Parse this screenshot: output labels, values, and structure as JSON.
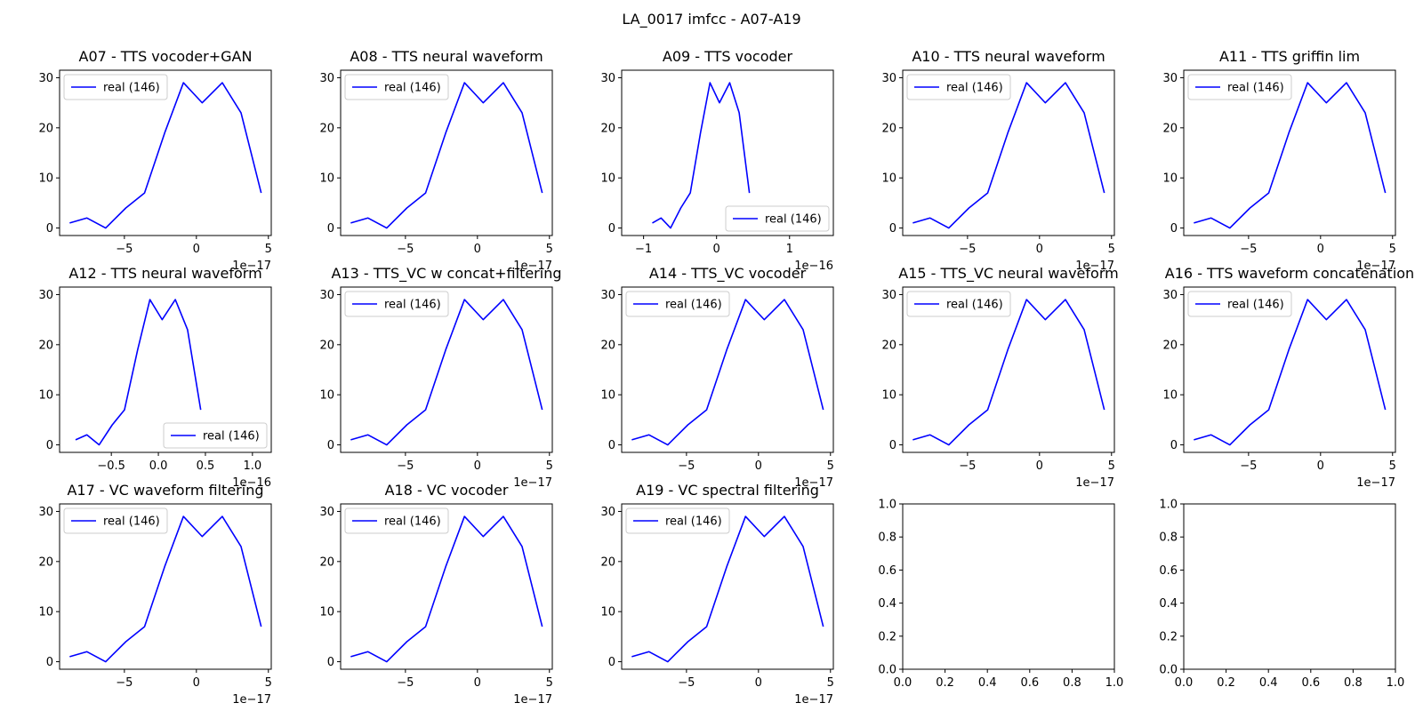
{
  "figure": {
    "suptitle": "LA_0017 imfcc - A07-A19"
  },
  "legend_label": "real (146)",
  "colors": {
    "series": "#0000ff",
    "axes": "#000000",
    "legend_border": "#cccccc"
  },
  "chart_data": [
    {
      "type": "line",
      "title": "A07 - TTS vocoder+GAN",
      "x": [
        -8.8e-17,
        -7.6e-17,
        -6.3e-17,
        -4.9e-17,
        -3.6e-17,
        -2.2e-17,
        -9e-18,
        4e-18,
        1.8e-17,
        3.1e-17,
        4.5e-17
      ],
      "series": [
        {
          "name": "real (146)",
          "values": [
            1,
            2,
            0,
            4,
            7,
            19,
            29,
            25,
            29,
            23,
            7
          ]
        }
      ],
      "xlim": [
        -9.5e-17,
        5.2e-17
      ],
      "ylim": [
        -1.5,
        31.5
      ],
      "xticks": [
        -5e-17,
        0,
        5e-17
      ],
      "xticklabels": [
        "−5",
        "0",
        "5"
      ],
      "yticks": [
        0,
        10,
        20,
        30
      ],
      "yticklabels": [
        "0",
        "10",
        "20",
        "30"
      ],
      "offset_text": "1e−17",
      "legend_loc": "upper left"
    },
    {
      "type": "line",
      "title": "A08 - TTS neural waveform",
      "x": [
        -8.8e-17,
        -7.6e-17,
        -6.3e-17,
        -4.9e-17,
        -3.6e-17,
        -2.2e-17,
        -9e-18,
        4e-18,
        1.8e-17,
        3.1e-17,
        4.5e-17
      ],
      "series": [
        {
          "name": "real (146)",
          "values": [
            1,
            2,
            0,
            4,
            7,
            19,
            29,
            25,
            29,
            23,
            7
          ]
        }
      ],
      "xlim": [
        -9.5e-17,
        5.2e-17
      ],
      "ylim": [
        -1.5,
        31.5
      ],
      "xticks": [
        -5e-17,
        0,
        5e-17
      ],
      "xticklabels": [
        "−5",
        "0",
        "5"
      ],
      "yticks": [
        0,
        10,
        20,
        30
      ],
      "yticklabels": [
        "0",
        "10",
        "20",
        "30"
      ],
      "offset_text": "1e−17",
      "legend_loc": "upper left"
    },
    {
      "type": "line",
      "title": "A09 - TTS vocoder",
      "x": [
        -8.8e-17,
        -7.6e-17,
        -6.3e-17,
        -4.9e-17,
        -3.6e-17,
        -2.2e-17,
        -9e-18,
        4e-18,
        1.8e-17,
        3.1e-17,
        4.5e-17
      ],
      "series": [
        {
          "name": "real (146)",
          "values": [
            1,
            2,
            0,
            4,
            7,
            19,
            29,
            25,
            29,
            23,
            7
          ]
        }
      ],
      "xlim": [
        -1.3e-16,
        1.6e-16
      ],
      "ylim": [
        -1.5,
        31.5
      ],
      "xticks": [
        -1e-16,
        0,
        1e-16
      ],
      "xticklabels": [
        "−1",
        "0",
        "1"
      ],
      "yticks": [
        0,
        10,
        20,
        30
      ],
      "yticklabels": [
        "0",
        "10",
        "20",
        "30"
      ],
      "offset_text": "1e−16",
      "legend_loc": "lower right"
    },
    {
      "type": "line",
      "title": "A10 - TTS neural waveform",
      "x": [
        -8.8e-17,
        -7.6e-17,
        -6.3e-17,
        -4.9e-17,
        -3.6e-17,
        -2.2e-17,
        -9e-18,
        4e-18,
        1.8e-17,
        3.1e-17,
        4.5e-17
      ],
      "series": [
        {
          "name": "real (146)",
          "values": [
            1,
            2,
            0,
            4,
            7,
            19,
            29,
            25,
            29,
            23,
            7
          ]
        }
      ],
      "xlim": [
        -9.5e-17,
        5.2e-17
      ],
      "ylim": [
        -1.5,
        31.5
      ],
      "xticks": [
        -5e-17,
        0,
        5e-17
      ],
      "xticklabels": [
        "−5",
        "0",
        "5"
      ],
      "yticks": [
        0,
        10,
        20,
        30
      ],
      "yticklabels": [
        "0",
        "10",
        "20",
        "30"
      ],
      "offset_text": "1e−17",
      "legend_loc": "upper left"
    },
    {
      "type": "line",
      "title": "A11 - TTS griffin lim",
      "x": [
        -8.8e-17,
        -7.6e-17,
        -6.3e-17,
        -4.9e-17,
        -3.6e-17,
        -2.2e-17,
        -9e-18,
        4e-18,
        1.8e-17,
        3.1e-17,
        4.5e-17
      ],
      "series": [
        {
          "name": "real (146)",
          "values": [
            1,
            2,
            0,
            4,
            7,
            19,
            29,
            25,
            29,
            23,
            7
          ]
        }
      ],
      "xlim": [
        -9.5e-17,
        5.2e-17
      ],
      "ylim": [
        -1.5,
        31.5
      ],
      "xticks": [
        -5e-17,
        0,
        5e-17
      ],
      "xticklabels": [
        "−5",
        "0",
        "5"
      ],
      "yticks": [
        0,
        10,
        20,
        30
      ],
      "yticklabels": [
        "0",
        "10",
        "20",
        "30"
      ],
      "offset_text": "1e−17",
      "legend_loc": "upper left"
    },
    {
      "type": "line",
      "title": "A12 - TTS neural waveform",
      "x": [
        -8.8e-17,
        -7.6e-17,
        -6.3e-17,
        -4.9e-17,
        -3.6e-17,
        -2.2e-17,
        -9e-18,
        4e-18,
        1.8e-17,
        3.1e-17,
        4.5e-17
      ],
      "series": [
        {
          "name": "real (146)",
          "values": [
            1,
            2,
            0,
            4,
            7,
            19,
            29,
            25,
            29,
            23,
            7
          ]
        }
      ],
      "xlim": [
        -1.05e-16,
        1.2e-16
      ],
      "ylim": [
        -1.5,
        31.5
      ],
      "xticks": [
        -5e-17,
        0,
        5e-17,
        1e-16
      ],
      "xticklabels": [
        "−0.5",
        "0.0",
        "0.5",
        "1.0"
      ],
      "yticks": [
        0,
        10,
        20,
        30
      ],
      "yticklabels": [
        "0",
        "10",
        "20",
        "30"
      ],
      "offset_text": "1e−16",
      "legend_loc": "lower right"
    },
    {
      "type": "line",
      "title": "A13 - TTS_VC w concat+filtering",
      "x": [
        -8.8e-17,
        -7.6e-17,
        -6.3e-17,
        -4.9e-17,
        -3.6e-17,
        -2.2e-17,
        -9e-18,
        4e-18,
        1.8e-17,
        3.1e-17,
        4.5e-17
      ],
      "series": [
        {
          "name": "real (146)",
          "values": [
            1,
            2,
            0,
            4,
            7,
            19,
            29,
            25,
            29,
            23,
            7
          ]
        }
      ],
      "xlim": [
        -9.5e-17,
        5.2e-17
      ],
      "ylim": [
        -1.5,
        31.5
      ],
      "xticks": [
        -5e-17,
        0,
        5e-17
      ],
      "xticklabels": [
        "−5",
        "0",
        "5"
      ],
      "yticks": [
        0,
        10,
        20,
        30
      ],
      "yticklabels": [
        "0",
        "10",
        "20",
        "30"
      ],
      "offset_text": "1e−17",
      "legend_loc": "upper left"
    },
    {
      "type": "line",
      "title": "A14 - TTS_VC vocoder",
      "x": [
        -8.8e-17,
        -7.6e-17,
        -6.3e-17,
        -4.9e-17,
        -3.6e-17,
        -2.2e-17,
        -9e-18,
        4e-18,
        1.8e-17,
        3.1e-17,
        4.5e-17
      ],
      "series": [
        {
          "name": "real (146)",
          "values": [
            1,
            2,
            0,
            4,
            7,
            19,
            29,
            25,
            29,
            23,
            7
          ]
        }
      ],
      "xlim": [
        -9.5e-17,
        5.2e-17
      ],
      "ylim": [
        -1.5,
        31.5
      ],
      "xticks": [
        -5e-17,
        0,
        5e-17
      ],
      "xticklabels": [
        "−5",
        "0",
        "5"
      ],
      "yticks": [
        0,
        10,
        20,
        30
      ],
      "yticklabels": [
        "0",
        "10",
        "20",
        "30"
      ],
      "offset_text": "1e−17",
      "legend_loc": "upper left"
    },
    {
      "type": "line",
      "title": "A15 - TTS_VC neural waveform",
      "x": [
        -8.8e-17,
        -7.6e-17,
        -6.3e-17,
        -4.9e-17,
        -3.6e-17,
        -2.2e-17,
        -9e-18,
        4e-18,
        1.8e-17,
        3.1e-17,
        4.5e-17
      ],
      "series": [
        {
          "name": "real (146)",
          "values": [
            1,
            2,
            0,
            4,
            7,
            19,
            29,
            25,
            29,
            23,
            7
          ]
        }
      ],
      "xlim": [
        -9.5e-17,
        5.2e-17
      ],
      "ylim": [
        -1.5,
        31.5
      ],
      "xticks": [
        -5e-17,
        0,
        5e-17
      ],
      "xticklabels": [
        "−5",
        "0",
        "5"
      ],
      "yticks": [
        0,
        10,
        20,
        30
      ],
      "yticklabels": [
        "0",
        "10",
        "20",
        "30"
      ],
      "offset_text": "1e−17",
      "legend_loc": "upper left"
    },
    {
      "type": "line",
      "title": "A16 - TTS waveform concatenation",
      "x": [
        -8.8e-17,
        -7.6e-17,
        -6.3e-17,
        -4.9e-17,
        -3.6e-17,
        -2.2e-17,
        -9e-18,
        4e-18,
        1.8e-17,
        3.1e-17,
        4.5e-17
      ],
      "series": [
        {
          "name": "real (146)",
          "values": [
            1,
            2,
            0,
            4,
            7,
            19,
            29,
            25,
            29,
            23,
            7
          ]
        }
      ],
      "xlim": [
        -9.5e-17,
        5.2e-17
      ],
      "ylim": [
        -1.5,
        31.5
      ],
      "xticks": [
        -5e-17,
        0,
        5e-17
      ],
      "xticklabels": [
        "−5",
        "0",
        "5"
      ],
      "yticks": [
        0,
        10,
        20,
        30
      ],
      "yticklabels": [
        "0",
        "10",
        "20",
        "30"
      ],
      "offset_text": "1e−17",
      "legend_loc": "upper left"
    },
    {
      "type": "line",
      "title": "A17 - VC waveform filtering",
      "x": [
        -8.8e-17,
        -7.6e-17,
        -6.3e-17,
        -4.9e-17,
        -3.6e-17,
        -2.2e-17,
        -9e-18,
        4e-18,
        1.8e-17,
        3.1e-17,
        4.5e-17
      ],
      "series": [
        {
          "name": "real (146)",
          "values": [
            1,
            2,
            0,
            4,
            7,
            19,
            29,
            25,
            29,
            23,
            7
          ]
        }
      ],
      "xlim": [
        -9.5e-17,
        5.2e-17
      ],
      "ylim": [
        -1.5,
        31.5
      ],
      "xticks": [
        -5e-17,
        0,
        5e-17
      ],
      "xticklabels": [
        "−5",
        "0",
        "5"
      ],
      "yticks": [
        0,
        10,
        20,
        30
      ],
      "yticklabels": [
        "0",
        "10",
        "20",
        "30"
      ],
      "offset_text": "1e−17",
      "legend_loc": "upper left"
    },
    {
      "type": "line",
      "title": "A18 - VC vocoder",
      "x": [
        -8.8e-17,
        -7.6e-17,
        -6.3e-17,
        -4.9e-17,
        -3.6e-17,
        -2.2e-17,
        -9e-18,
        4e-18,
        1.8e-17,
        3.1e-17,
        4.5e-17
      ],
      "series": [
        {
          "name": "real (146)",
          "values": [
            1,
            2,
            0,
            4,
            7,
            19,
            29,
            25,
            29,
            23,
            7
          ]
        }
      ],
      "xlim": [
        -9.5e-17,
        5.2e-17
      ],
      "ylim": [
        -1.5,
        31.5
      ],
      "xticks": [
        -5e-17,
        0,
        5e-17
      ],
      "xticklabels": [
        "−5",
        "0",
        "5"
      ],
      "yticks": [
        0,
        10,
        20,
        30
      ],
      "yticklabels": [
        "0",
        "10",
        "20",
        "30"
      ],
      "offset_text": "1e−17",
      "legend_loc": "upper left"
    },
    {
      "type": "line",
      "title": "A19 - VC spectral filtering",
      "x": [
        -8.8e-17,
        -7.6e-17,
        -6.3e-17,
        -4.9e-17,
        -3.6e-17,
        -2.2e-17,
        -9e-18,
        4e-18,
        1.8e-17,
        3.1e-17,
        4.5e-17
      ],
      "series": [
        {
          "name": "real (146)",
          "values": [
            1,
            2,
            0,
            4,
            7,
            19,
            29,
            25,
            29,
            23,
            7
          ]
        }
      ],
      "xlim": [
        -9.5e-17,
        5.2e-17
      ],
      "ylim": [
        -1.5,
        31.5
      ],
      "xticks": [
        -5e-17,
        0,
        5e-17
      ],
      "xticklabels": [
        "−5",
        "0",
        "5"
      ],
      "yticks": [
        0,
        10,
        20,
        30
      ],
      "yticklabels": [
        "0",
        "10",
        "20",
        "30"
      ],
      "offset_text": "1e−17",
      "legend_loc": "upper left"
    },
    {
      "type": "line",
      "title": "",
      "x": [],
      "series": [],
      "xlim": [
        0,
        1
      ],
      "ylim": [
        0,
        1
      ],
      "xticks": [
        0,
        0.2,
        0.4,
        0.6,
        0.8,
        1.0
      ],
      "xticklabels": [
        "0.0",
        "0.2",
        "0.4",
        "0.6",
        "0.8",
        "1.0"
      ],
      "yticks": [
        0,
        0.2,
        0.4,
        0.6,
        0.8,
        1.0
      ],
      "yticklabels": [
        "0.0",
        "0.2",
        "0.4",
        "0.6",
        "0.8",
        "1.0"
      ],
      "offset_text": "",
      "legend_loc": ""
    },
    {
      "type": "line",
      "title": "",
      "x": [],
      "series": [],
      "xlim": [
        0,
        1
      ],
      "ylim": [
        0,
        1
      ],
      "xticks": [
        0,
        0.2,
        0.4,
        0.6,
        0.8,
        1.0
      ],
      "xticklabels": [
        "0.0",
        "0.2",
        "0.4",
        "0.6",
        "0.8",
        "1.0"
      ],
      "yticks": [
        0,
        0.2,
        0.4,
        0.6,
        0.8,
        1.0
      ],
      "yticklabels": [
        "0.0",
        "0.2",
        "0.4",
        "0.6",
        "0.8",
        "1.0"
      ],
      "offset_text": "",
      "legend_loc": ""
    }
  ]
}
